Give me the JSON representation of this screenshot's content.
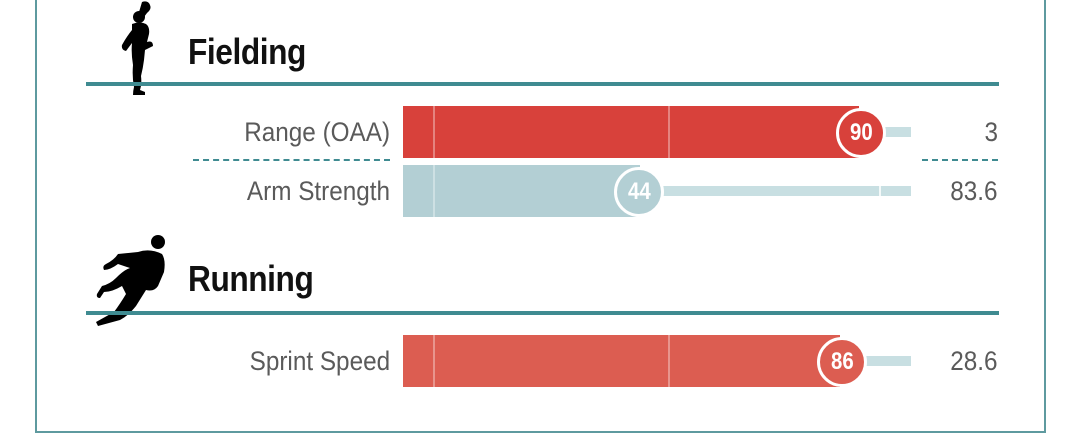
{
  "sections": [
    {
      "title": "Fielding",
      "icon": "fielder-silhouette-icon",
      "rows": [
        {
          "label": "Range (OAA)",
          "percentile": 90,
          "percentile_label": "90",
          "value": "3",
          "color": "#d8413b",
          "track_color": "#c8dfe2"
        },
        {
          "label": "Arm Strength",
          "percentile": 44,
          "percentile_label": "44",
          "value": "83.6",
          "color": "#b3cfd4",
          "track_color": "#c8dfe2"
        }
      ]
    },
    {
      "title": "Running",
      "icon": "runner-silhouette-icon",
      "rows": [
        {
          "label": "Sprint Speed",
          "percentile": 86,
          "percentile_label": "86",
          "value": "28.6",
          "color": "#dc5d51",
          "track_color": "#c8dfe2"
        }
      ]
    }
  ],
  "colors": {
    "frame": "#5e9a9f",
    "rule": "#3f8b91",
    "label_text": "#5a5a5a"
  }
}
